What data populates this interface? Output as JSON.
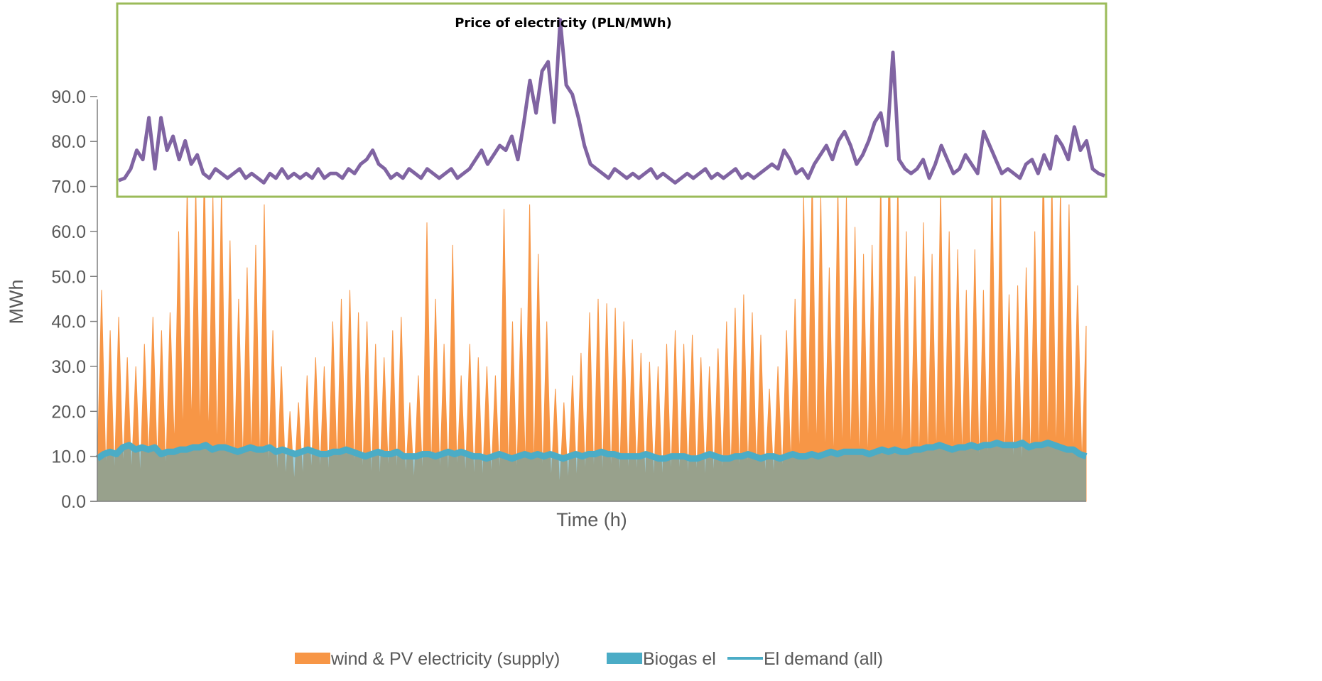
{
  "colors": {
    "supply": "#F79646",
    "biogas": "#4BACC6",
    "demand": "#4BACC6",
    "price": "#8064A2",
    "inset_border": "#9BBB59",
    "axis": "#7F7F7F",
    "text": "#595959"
  },
  "chart_data": [
    {
      "type": "area",
      "xlabel": "Time (h)",
      "ylabel": "MWh",
      "ylim": [
        0,
        90
      ],
      "yticks": [
        "0.0",
        "10.0",
        "20.0",
        "30.0",
        "40.0",
        "50.0",
        "60.0",
        "70.0",
        "80.0",
        "90.0"
      ],
      "grid": false,
      "legend_position": "bottom",
      "series": [
        {
          "name": "wind & PV electricity (supply)",
          "kind": "area",
          "values": [
            8,
            47,
            6,
            38,
            5,
            41,
            7,
            32,
            6,
            30,
            5,
            35,
            9,
            41,
            8,
            38,
            6,
            42,
            12,
            60,
            14,
            70,
            16,
            70,
            14,
            75,
            13,
            68,
            10,
            70,
            8,
            58,
            7,
            45,
            8,
            52,
            9,
            57,
            7,
            66,
            6,
            38,
            5,
            30,
            5,
            20,
            4,
            22,
            5,
            28,
            6,
            32,
            6,
            30,
            5,
            40,
            7,
            45,
            8,
            47,
            6,
            42,
            5,
            40,
            4,
            35,
            4,
            32,
            6,
            38,
            5,
            41,
            5,
            22,
            4,
            28,
            5,
            62,
            6,
            45,
            5,
            35,
            4,
            57,
            6,
            28,
            5,
            35,
            4,
            32,
            4,
            30,
            5,
            28,
            5,
            65,
            6,
            40,
            5,
            43,
            7,
            66,
            6,
            55,
            5,
            40,
            4,
            25,
            3,
            22,
            4,
            28,
            4,
            33,
            5,
            42,
            5,
            45,
            4,
            44,
            5,
            43,
            4,
            40,
            5,
            36,
            5,
            33,
            4,
            31,
            4,
            30,
            4,
            35,
            5,
            38,
            5,
            35,
            4,
            37,
            5,
            32,
            4,
            30,
            5,
            34,
            5,
            40,
            6,
            43,
            5,
            46,
            6,
            42,
            6,
            37,
            5,
            25,
            5,
            30,
            6,
            38,
            8,
            45,
            9,
            68,
            10,
            73,
            10,
            68,
            9,
            52,
            8,
            70,
            9,
            68,
            9,
            61,
            8,
            55,
            8,
            57,
            9,
            72,
            10,
            80,
            10,
            72,
            9,
            60,
            8,
            50,
            8,
            62,
            8,
            55,
            9,
            70,
            10,
            60,
            9,
            56,
            9,
            47,
            8,
            56,
            7,
            47,
            7,
            72,
            10,
            70,
            8,
            46,
            7,
            48,
            6,
            52,
            8,
            60,
            8,
            77,
            10,
            72,
            9,
            70,
            9,
            66,
            9,
            48,
            8,
            39
          ]
        },
        {
          "name": "Biogas el",
          "kind": "area",
          "values": [
            9.5,
            10.5,
            11,
            10.5,
            12,
            12.5,
            11.5,
            12,
            11.5,
            12,
            10.5,
            11,
            11,
            11.5,
            11.5,
            12,
            12,
            12.5,
            11.5,
            12,
            12,
            11.5,
            11,
            11.5,
            12,
            11.5,
            11.5,
            12,
            11,
            11.5,
            11,
            10.5,
            11,
            11.5,
            11,
            10.5,
            10.5,
            11,
            11,
            11.5,
            11,
            10.5,
            10,
            10.5,
            11,
            10.5,
            10.5,
            11,
            10,
            10,
            10,
            10.5,
            10.5,
            10,
            10.5,
            11,
            10.5,
            11,
            10.5,
            10,
            10,
            9.5,
            10,
            10.5,
            10,
            9.5,
            10,
            10.5,
            10,
            10.5,
            10,
            10.5,
            10,
            9.5,
            10,
            10.5,
            10,
            10.5,
            10.5,
            11,
            10.5,
            10.5,
            10,
            10,
            10,
            10,
            10.5,
            10,
            9.5,
            9.5,
            10,
            10,
            10,
            9.5,
            9.5,
            10,
            10.5,
            10,
            9.5,
            9.5,
            10,
            10,
            10.5,
            10,
            9.5,
            10,
            10,
            9.5,
            10,
            10.5,
            10,
            10,
            10.5,
            10,
            10.5,
            11,
            10.5,
            11,
            11,
            11,
            11,
            10.5,
            11,
            11.5,
            11,
            11.5,
            11,
            11,
            11.5,
            11.5,
            12,
            12,
            12.5,
            12,
            11.5,
            12,
            12,
            12.5,
            12,
            12.5,
            12.5,
            13,
            12.5,
            12.5,
            12.5,
            13,
            12,
            12.5,
            12.5,
            13,
            12.5,
            12,
            11.5,
            11.5,
            10.5,
            10
          ]
        },
        {
          "name": "El demand (all)",
          "kind": "line",
          "values": [
            9.5,
            10.5,
            11,
            10.5,
            12,
            12.5,
            11.5,
            12,
            11.5,
            12,
            10.5,
            11,
            11,
            11.5,
            11.5,
            12,
            12,
            12.5,
            11.5,
            12,
            12,
            11.5,
            11,
            11.5,
            12,
            11.5,
            11.5,
            12,
            11,
            11.5,
            11,
            10.5,
            11,
            11.5,
            11,
            10.5,
            10.5,
            11,
            11,
            11.5,
            11,
            10.5,
            10,
            10.5,
            11,
            10.5,
            10.5,
            11,
            10,
            10,
            10,
            10.5,
            10.5,
            10,
            10.5,
            11,
            10.5,
            11,
            10.5,
            10,
            10,
            9.5,
            10,
            10.5,
            10,
            9.5,
            10,
            10.5,
            10,
            10.5,
            10,
            10.5,
            10,
            9.5,
            10,
            10.5,
            10,
            10.5,
            10.5,
            11,
            10.5,
            10.5,
            10,
            10,
            10,
            10,
            10.5,
            10,
            9.5,
            9.5,
            10,
            10,
            10,
            9.5,
            9.5,
            10,
            10.5,
            10,
            9.5,
            9.5,
            10,
            10,
            10.5,
            10,
            9.5,
            10,
            10,
            9.5,
            10,
            10.5,
            10,
            10,
            10.5,
            10,
            10.5,
            11,
            10.5,
            11,
            11,
            11,
            11,
            10.5,
            11,
            11.5,
            11,
            11.5,
            11,
            11,
            11.5,
            11.5,
            12,
            12,
            12.5,
            12,
            11.5,
            12,
            12,
            12.5,
            12,
            12.5,
            12.5,
            13,
            12.5,
            12.5,
            12.5,
            13,
            12,
            12.5,
            12.5,
            13,
            12.5,
            12,
            11.5,
            11.5,
            10.5,
            10
          ]
        }
      ]
    },
    {
      "type": "line",
      "title": "Price of electricity (PLN/MWh)",
      "series": [
        {
          "values": [
            71.5,
            72,
            74,
            78,
            76,
            85,
            74,
            85,
            78,
            81,
            76,
            80,
            75,
            77,
            73,
            72,
            74,
            73,
            72,
            73,
            74,
            72,
            73,
            72,
            71,
            73,
            72,
            74,
            72,
            73,
            72,
            73,
            72,
            74,
            72,
            73,
            73,
            72,
            74,
            73,
            75,
            76,
            78,
            75,
            74,
            72,
            73,
            72,
            74,
            73,
            72,
            74,
            73,
            72,
            73,
            74,
            72,
            73,
            74,
            76,
            78,
            75,
            77,
            79,
            78,
            81,
            76,
            84,
            93,
            86,
            95,
            97,
            84,
            106,
            92,
            90,
            85,
            79,
            75,
            74,
            73,
            72,
            74,
            73,
            72,
            73,
            72,
            73,
            74,
            72,
            73,
            72,
            71,
            72,
            73,
            72,
            73,
            74,
            72,
            73,
            72,
            73,
            74,
            72,
            73,
            72,
            73,
            74,
            75,
            74,
            78,
            76,
            73,
            74,
            72,
            75,
            77,
            79,
            76,
            80,
            82,
            79,
            75,
            77,
            80,
            84,
            86,
            79,
            99,
            76,
            74,
            73,
            74,
            76,
            72,
            75,
            79,
            76,
            73,
            74,
            77,
            75,
            73,
            82,
            79,
            76,
            73,
            74,
            73,
            72,
            75,
            76,
            73,
            77,
            74,
            81,
            79,
            76,
            83,
            78,
            80,
            74,
            73,
            72.5
          ]
        }
      ]
    }
  ]
}
